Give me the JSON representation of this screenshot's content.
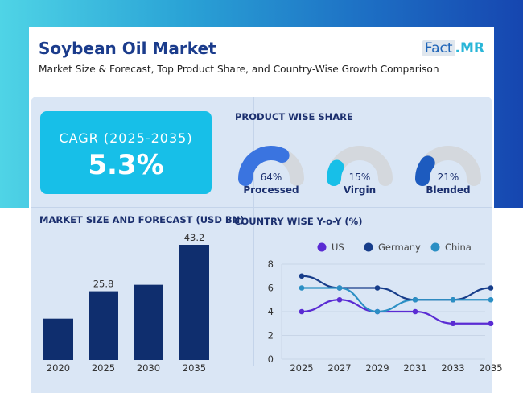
{
  "header": {
    "title": "Soybean Oil Market",
    "subtitle": "Market Size & Forecast, Top Product Share, and Country-Wise Growth Comparison",
    "logo_fact": "Fact",
    "logo_mr": ".MR"
  },
  "cagr": {
    "label": "CAGR (2025-2035)",
    "value": "5.3%"
  },
  "product_share": {
    "title": "PRODUCT WISE SHARE",
    "items": [
      {
        "name": "Processed",
        "value": "64%",
        "share": 64,
        "color": "#3a74e0"
      },
      {
        "name": "Virgin",
        "value": "15%",
        "share": 15,
        "color": "#17bfe8"
      },
      {
        "name": "Blended",
        "value": "21%",
        "share": 21,
        "color": "#1d5bbf"
      }
    ]
  },
  "colors": {
    "accent": "#17bfe8",
    "navy": "#0f2e6e",
    "gauge_track": "#d4d8dd"
  },
  "chart_data": [
    {
      "type": "bar",
      "title": "MARKET SIZE AND FORECAST (USD BN)",
      "categories": [
        "2020",
        "2025",
        "2030",
        "2035"
      ],
      "values": [
        15.5,
        25.8,
        28.2,
        43.2
      ],
      "data_labels": [
        "",
        "25.8",
        "",
        "43.2"
      ],
      "ylim": [
        0,
        43.2
      ],
      "color": "#0f2e6e"
    },
    {
      "type": "line",
      "title": "COUNTRY WISE Y-o-Y (%)",
      "x": [
        "2025",
        "2027",
        "2029",
        "2031",
        "2033",
        "2035"
      ],
      "ylim": [
        0,
        8
      ],
      "yticks": [
        0,
        2,
        4,
        6,
        8
      ],
      "grid": true,
      "legend": "top",
      "series": [
        {
          "name": "US",
          "color": "#5a2bd3",
          "values": [
            4,
            5,
            4,
            4,
            3,
            3
          ]
        },
        {
          "name": "Germany",
          "color": "#173d8a",
          "values": [
            7,
            6,
            6,
            5,
            5,
            6
          ]
        },
        {
          "name": "China",
          "color": "#2b8fc4",
          "values": [
            6,
            6,
            4,
            5,
            5,
            5
          ]
        }
      ]
    }
  ]
}
